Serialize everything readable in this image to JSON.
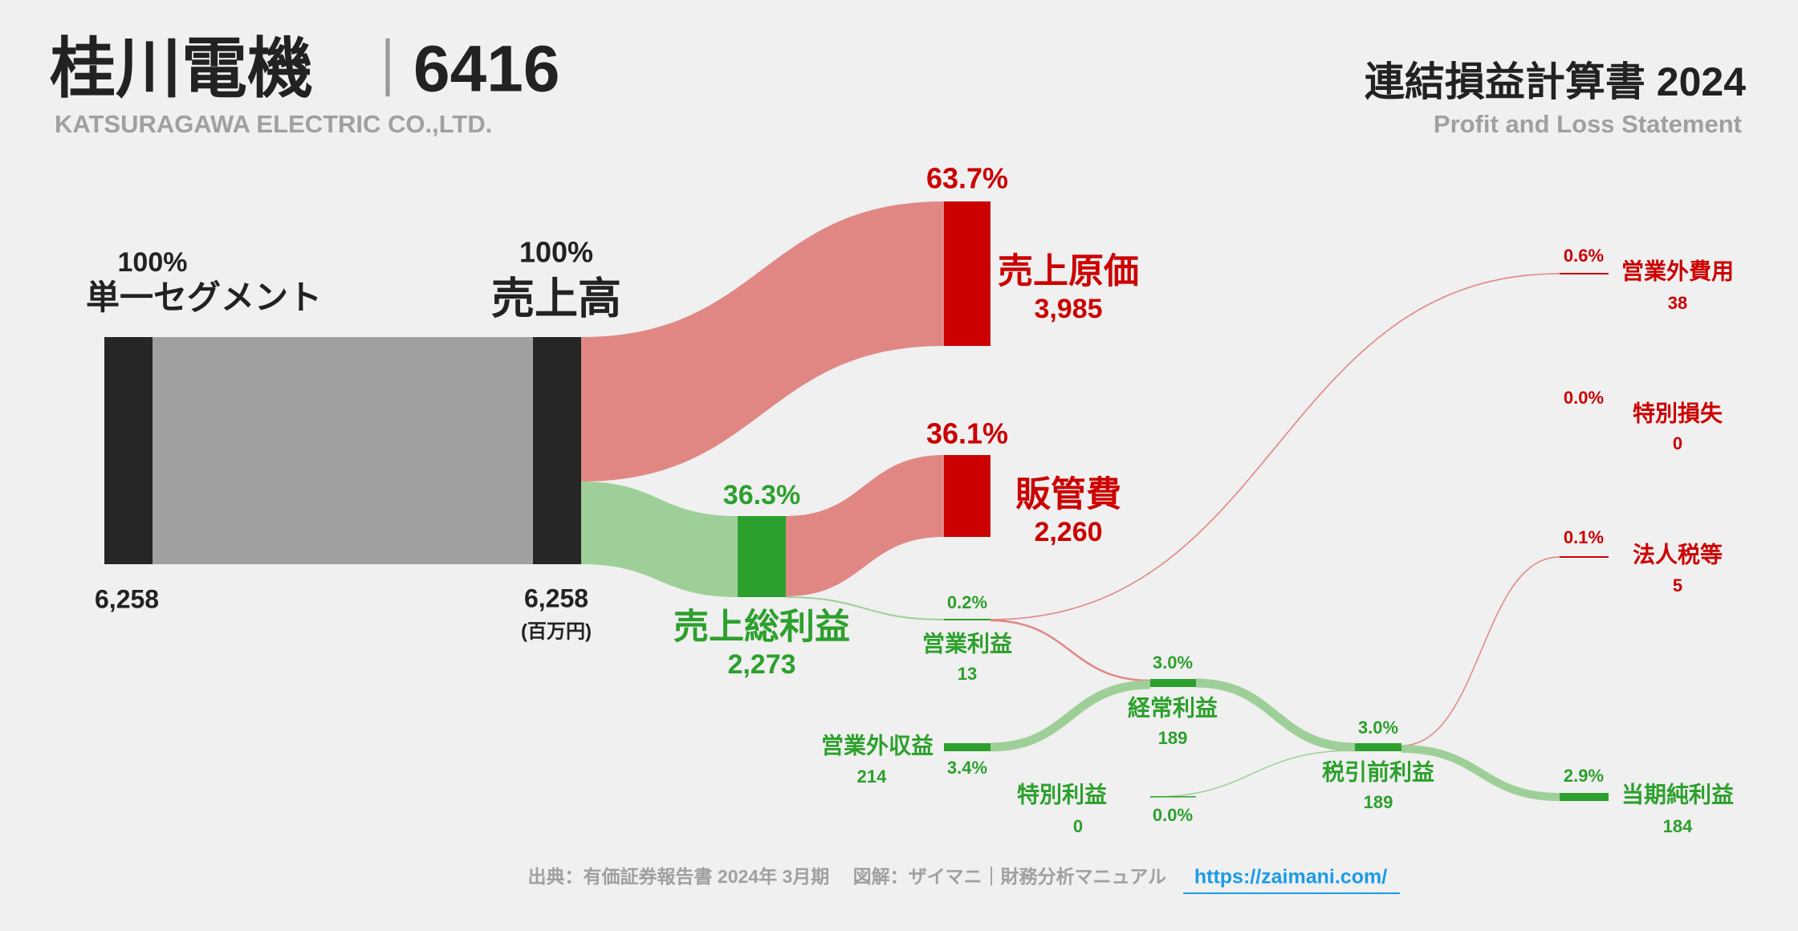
{
  "header": {
    "company": "桂川電機",
    "separator": "｜",
    "code": "6416",
    "company_en": "KATSURAGAWA ELECTRIC CO.,LTD.",
    "statement_title": "連結損益計算書 2024",
    "statement_en": "Profit and Loss Statement"
  },
  "colors": {
    "cost": "#cc0000",
    "profit": "#2ca02c",
    "cost_flow": "#e08784",
    "profit_flow": "#9ecf98",
    "neutral": "#262626",
    "neutral_flow": "#a0a0a0",
    "link": "#1a9be8"
  },
  "chart_data": {
    "type": "sankey",
    "unit": "(百万円)",
    "nodes": [
      {
        "id": "segment",
        "label": "単一セグメント",
        "value": "6,258",
        "pct": "100%"
      },
      {
        "id": "revenue",
        "label": "売上高",
        "value": "6,258",
        "pct": "100%"
      },
      {
        "id": "cogs",
        "label": "売上原価",
        "value": "3,985",
        "pct": "63.7%"
      },
      {
        "id": "gross",
        "label": "売上総利益",
        "value": "2,273",
        "pct": "36.3%"
      },
      {
        "id": "sga",
        "label": "販管費",
        "value": "2,260",
        "pct": "36.1%"
      },
      {
        "id": "op",
        "label": "営業利益",
        "value": "13",
        "pct": "0.2%"
      },
      {
        "id": "nonop_exp",
        "label": "営業外費用",
        "value": "38",
        "pct": "0.6%"
      },
      {
        "id": "nonop_inc",
        "label": "営業外収益",
        "value": "214",
        "pct": "3.4%"
      },
      {
        "id": "ordinary",
        "label": "経常利益",
        "value": "189",
        "pct": "3.0%"
      },
      {
        "id": "special_gain",
        "label": "特別利益",
        "value": "0",
        "pct": "0.0%"
      },
      {
        "id": "special_loss",
        "label": "特別損失",
        "value": "0",
        "pct": "0.0%"
      },
      {
        "id": "pretax",
        "label": "税引前利益",
        "value": "189",
        "pct": "3.0%"
      },
      {
        "id": "tax",
        "label": "法人税等",
        "value": "5",
        "pct": "0.1%"
      },
      {
        "id": "net",
        "label": "当期純利益",
        "value": "184",
        "pct": "2.9%"
      }
    ],
    "links": [
      {
        "from": "segment",
        "to": "revenue",
        "value": 6258
      },
      {
        "from": "revenue",
        "to": "cogs",
        "value": 3985
      },
      {
        "from": "revenue",
        "to": "gross",
        "value": 2273
      },
      {
        "from": "gross",
        "to": "sga",
        "value": 2260
      },
      {
        "from": "gross",
        "to": "op",
        "value": 13
      },
      {
        "from": "op",
        "to": "nonop_exp",
        "value": 38
      },
      {
        "from": "op",
        "to": "ordinary",
        "value": 13
      },
      {
        "from": "nonop_inc",
        "to": "ordinary",
        "value": 214
      },
      {
        "from": "ordinary",
        "to": "pretax",
        "value": 189
      },
      {
        "from": "special_gain",
        "to": "pretax",
        "value": 0
      },
      {
        "from": "pretax",
        "to": "tax",
        "value": 5
      },
      {
        "from": "pretax",
        "to": "net",
        "value": 184
      }
    ]
  },
  "footer": {
    "source": "出典：有価証券報告書 2024年 3月期　 図解：ザイマニ｜財務分析マニュアル",
    "link": "https://zaimani.com/"
  }
}
